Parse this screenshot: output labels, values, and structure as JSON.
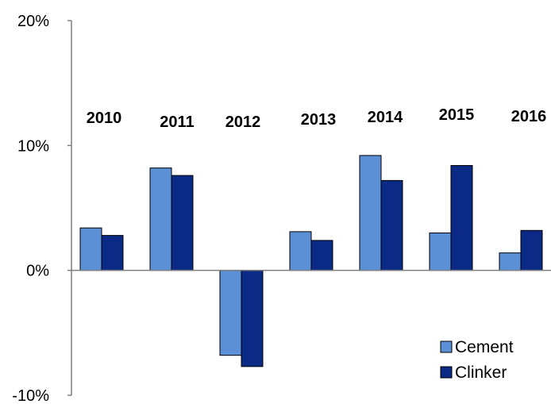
{
  "chart_data": {
    "type": "bar",
    "title": "",
    "xlabel": "",
    "ylabel": "",
    "categories": [
      "2010",
      "2011",
      "2012",
      "2013",
      "2014",
      "2015",
      "2016"
    ],
    "series": [
      {
        "name": "Cement",
        "values": [
          3.4,
          8.2,
          -6.8,
          3.1,
          9.2,
          3.0,
          1.4
        ],
        "color": "#5b8fd6"
      },
      {
        "name": "Clinker",
        "values": [
          2.8,
          7.6,
          -7.7,
          2.4,
          7.2,
          8.4,
          3.2
        ],
        "color": "#0b2a86"
      }
    ],
    "ylim": [
      -10,
      20
    ],
    "yticks": [
      -10,
      0,
      10,
      20
    ],
    "ytick_labels": [
      "-10%",
      "0%",
      "10%",
      "20%"
    ],
    "grid": false,
    "legend_position": "bottom-right",
    "category_labels_position": "above-bars"
  }
}
